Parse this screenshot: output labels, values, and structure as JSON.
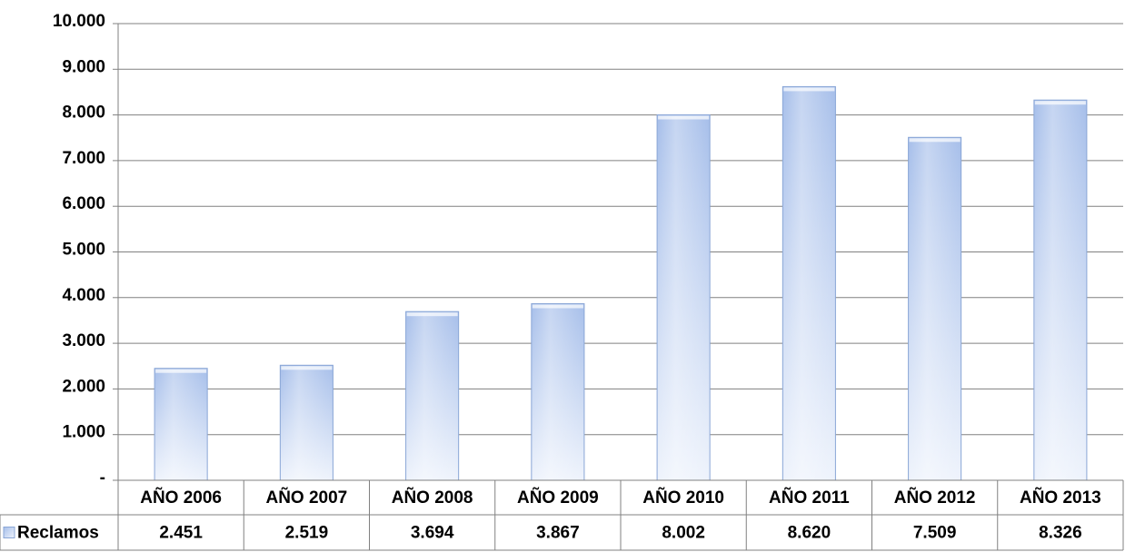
{
  "chart_data": {
    "type": "bar",
    "categories": [
      "AÑO 2006",
      "AÑO 2007",
      "AÑO 2008",
      "AÑO 2009",
      "AÑO 2010",
      "AÑO 2011",
      "AÑO 2012",
      "AÑO 2013"
    ],
    "series": [
      {
        "name": "Reclamos",
        "values": [
          2451,
          2519,
          3694,
          3867,
          8002,
          8620,
          7509,
          8326
        ],
        "value_labels": [
          "2.451",
          "2.519",
          "3.694",
          "3.867",
          "8.002",
          "8.620",
          "7.509",
          "8.326"
        ]
      }
    ],
    "y_tick_values": [
      0,
      1000,
      2000,
      3000,
      4000,
      5000,
      6000,
      7000,
      8000,
      9000,
      10000
    ],
    "y_tick_labels": [
      "-",
      "1.000",
      "2.000",
      "3.000",
      "4.000",
      "5.000",
      "6.000",
      "7.000",
      "8.000",
      "9.000",
      "10.000"
    ],
    "ylim": [
      0,
      10000
    ],
    "grid": true,
    "legend": "data-table-left",
    "colors": {
      "bar_light": "#eef3fc",
      "bar_dark": "#a7bfea",
      "bar_edge": "#8aa6d6",
      "grid": "#808080",
      "axis": "#808080",
      "table_border": "#808080"
    }
  }
}
